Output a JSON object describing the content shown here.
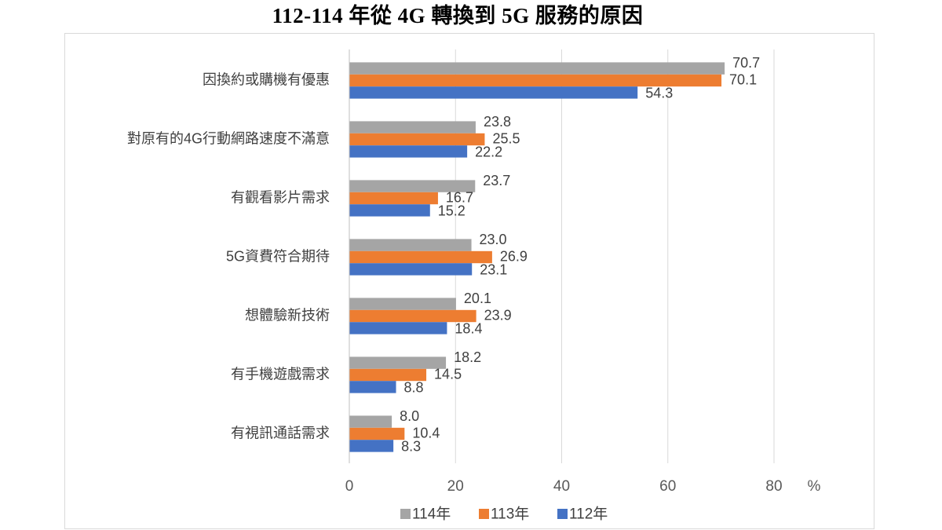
{
  "chart_data": {
    "type": "bar",
    "orientation": "horizontal",
    "title": "112-114 年從 4G 轉換到 5G 服務的原因",
    "categories": [
      "因換約或購機有優惠",
      "對原有的4G行動網路速度不滿意",
      "有觀看影片需求",
      "5G資費符合期待",
      "想體驗新技術",
      "有手機遊戲需求",
      "有視訊通話需求"
    ],
    "series": [
      {
        "name": "114年",
        "color": "#A5A5A5",
        "values": [
          70.7,
          23.8,
          23.7,
          23.0,
          20.1,
          18.2,
          8.0
        ]
      },
      {
        "name": "113年",
        "color": "#ED7D31",
        "values": [
          70.1,
          25.5,
          16.7,
          26.9,
          23.9,
          14.5,
          10.4
        ]
      },
      {
        "name": "112年",
        "color": "#4472C4",
        "values": [
          54.3,
          22.2,
          15.2,
          23.1,
          18.4,
          8.8,
          8.3
        ]
      }
    ],
    "xlabel": "%",
    "xlim": [
      0,
      80
    ],
    "xticks": [
      0,
      20,
      40,
      60,
      80
    ],
    "data_labels": true,
    "grid": true,
    "legend": "bottom"
  }
}
